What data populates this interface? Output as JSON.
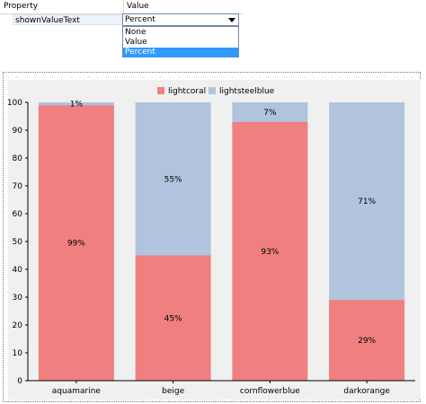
{
  "property_editor": {
    "header": {
      "property": "Property",
      "value": "Value"
    },
    "row": {
      "name": "shownValueText",
      "value": "Percent"
    },
    "dropdown_options": [
      {
        "label": "None",
        "selected": false
      },
      {
        "label": "Value",
        "selected": false
      },
      {
        "label": "Percent",
        "selected": true
      }
    ]
  },
  "colors": {
    "lightcoral": "#f08080",
    "lightsteelblue": "#b0c4de",
    "selection": "#3399ff"
  },
  "chart_data": {
    "type": "bar",
    "stacked": true,
    "categories": [
      "aquamarine",
      "beige",
      "cornflowerblue",
      "darkorange"
    ],
    "series": [
      {
        "name": "lightcoral",
        "values": [
          99,
          45,
          93,
          29
        ],
        "labels": [
          "99%",
          "45%",
          "93%",
          "29%"
        ]
      },
      {
        "name": "lightsteelblue",
        "values": [
          1,
          55,
          7,
          71
        ],
        "labels": [
          "1%",
          "55%",
          "7%",
          "71%"
        ]
      }
    ],
    "ylim": [
      0,
      100
    ],
    "yticks": [
      "0",
      "10",
      "20",
      "30",
      "40",
      "50",
      "60",
      "70",
      "80",
      "90",
      "100"
    ],
    "legend": "top-center",
    "grid": false
  }
}
